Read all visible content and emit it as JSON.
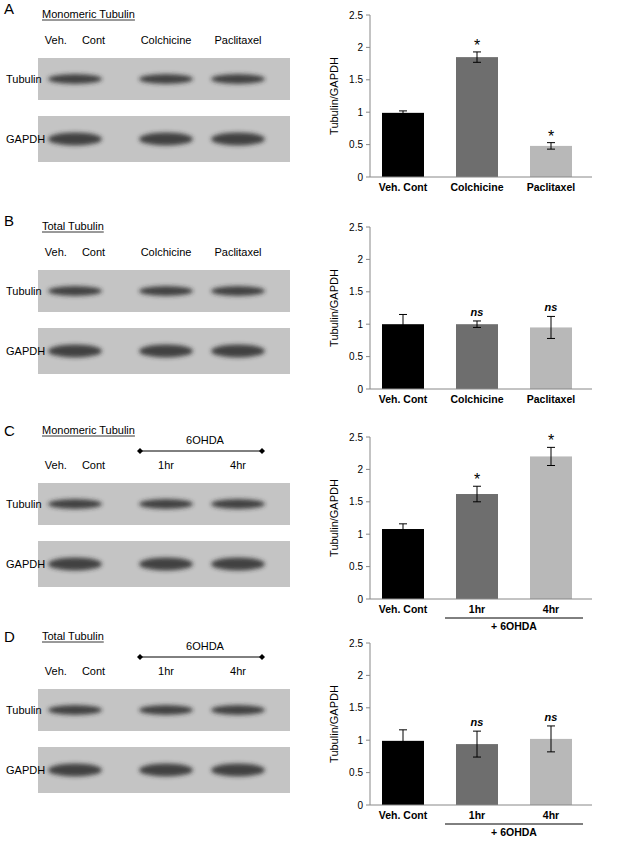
{
  "chart_data": [
    {
      "type": "bar",
      "panel": "A",
      "blot_title": "Monomeric Tubulin",
      "blot_lanes": [
        "Veh. Cont",
        "Colchicine",
        "Paclitaxel"
      ],
      "blot_rows": [
        "Tubulin",
        "GAPDH"
      ],
      "categories": [
        "Veh. Cont",
        "Colchicine",
        "Paclitaxel"
      ],
      "values": [
        0.99,
        1.85,
        0.48
      ],
      "errors": [
        0.03,
        0.08,
        0.05
      ],
      "significance": [
        null,
        "*",
        "*"
      ],
      "colors": [
        "#000000",
        "#6e6e6e",
        "#b8b8b8"
      ],
      "ylabel": "Tubulin/GAPDH",
      "ylim": [
        0,
        2.5
      ],
      "yticks": [
        0,
        0.5,
        1,
        1.5,
        2,
        2.5
      ],
      "grid": false
    },
    {
      "type": "bar",
      "panel": "B",
      "blot_title": "Total Tubulin",
      "blot_lanes": [
        "Veh. Cont",
        "Colchicine",
        "Paclitaxel"
      ],
      "blot_rows": [
        "Tubulin",
        "GAPDH"
      ],
      "categories": [
        "Veh. Cont",
        "Colchicine",
        "Paclitaxel"
      ],
      "values": [
        1.0,
        1.0,
        0.95
      ],
      "errors": [
        0.15,
        0.05,
        0.17
      ],
      "significance": [
        null,
        "ns",
        "ns"
      ],
      "colors": [
        "#000000",
        "#6e6e6e",
        "#b8b8b8"
      ],
      "ylabel": "Tubulin/GAPDH",
      "ylim": [
        0,
        2.5
      ],
      "yticks": [
        0,
        0.5,
        1,
        1.5,
        2,
        2.5
      ],
      "grid": false
    },
    {
      "type": "bar",
      "panel": "C",
      "blot_title": "Monomeric Tubulin",
      "blot_group_label": "6OHDA",
      "blot_lanes": [
        "Veh. Cont",
        "1hr",
        "4hr"
      ],
      "blot_rows": [
        "Tubulin",
        "GAPDH"
      ],
      "categories": [
        "Veh. Cont",
        "1hr",
        "4hr"
      ],
      "group_label": "+ 6OHDA",
      "values": [
        1.08,
        1.62,
        2.2
      ],
      "errors": [
        0.08,
        0.12,
        0.14
      ],
      "significance": [
        null,
        "*",
        "*"
      ],
      "colors": [
        "#000000",
        "#6e6e6e",
        "#b8b8b8"
      ],
      "ylabel": "Tubulin/GAPDH",
      "ylim": [
        0,
        2.5
      ],
      "yticks": [
        0,
        0.5,
        1,
        1.5,
        2,
        2.5
      ],
      "grid": false
    },
    {
      "type": "bar",
      "panel": "D",
      "blot_title": "Total Tubulin",
      "blot_group_label": "6OHDA",
      "blot_lanes": [
        "Veh. Cont",
        "1hr",
        "4hr"
      ],
      "blot_rows": [
        "Tubulin",
        "GAPDH"
      ],
      "categories": [
        "Veh. Cont",
        "1hr",
        "4hr"
      ],
      "group_label": "+ 6OHDA",
      "values": [
        0.99,
        0.94,
        1.02
      ],
      "errors": [
        0.17,
        0.2,
        0.2
      ],
      "significance": [
        null,
        "ns",
        "ns"
      ],
      "colors": [
        "#000000",
        "#6e6e6e",
        "#b8b8b8"
      ],
      "ylabel": "Tubulin/GAPDH",
      "ylim": [
        0,
        2.5
      ],
      "yticks": [
        0,
        0.5,
        1,
        1.5,
        2,
        2.5
      ],
      "grid": false
    }
  ]
}
